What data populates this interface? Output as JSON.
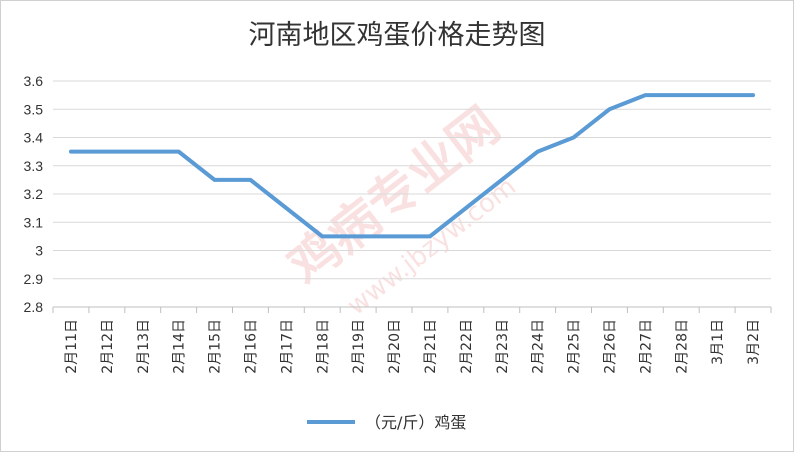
{
  "chart_data": {
    "type": "line",
    "title": "河南地区鸡蛋价格走势图",
    "xlabel": "",
    "ylabel": "",
    "categories": [
      "2月11日",
      "2月12日",
      "2月13日",
      "2月14日",
      "2月15日",
      "2月16日",
      "2月17日",
      "2月18日",
      "2月19日",
      "2月20日",
      "2月21日",
      "2月22日",
      "2月23日",
      "2月24日",
      "2月25日",
      "2月26日",
      "2月27日",
      "2月28日",
      "3月1日",
      "3月2日"
    ],
    "series": [
      {
        "name": "（元/斤）鸡蛋",
        "values": [
          3.35,
          3.35,
          3.35,
          3.35,
          3.25,
          3.25,
          3.15,
          3.05,
          3.05,
          3.05,
          3.05,
          3.15,
          3.25,
          3.35,
          3.4,
          3.5,
          3.55,
          3.55,
          3.55,
          3.55
        ]
      }
    ],
    "yticks": [
      "2.8",
      "2.9",
      "3",
      "3.1",
      "3.2",
      "3.3",
      "3.4",
      "3.5",
      "3.6"
    ],
    "ylim": [
      2.8,
      3.6
    ],
    "grid": true,
    "legend_position": "bottom",
    "line_color": "#5b9bd5"
  },
  "watermark": {
    "text": "鸡病专业网",
    "url": "www.jbzyw.com"
  }
}
